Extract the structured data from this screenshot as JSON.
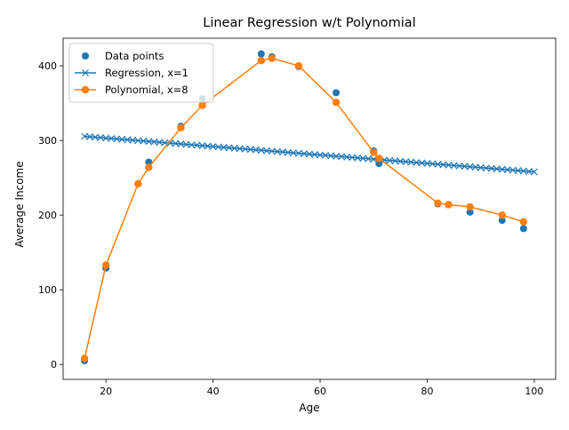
{
  "chart_data": {
    "type": "scatter",
    "title": "Linear Regression w/t Polynomial",
    "xlabel": "Age",
    "ylabel": "Average Income",
    "xlim": [
      12,
      104
    ],
    "ylim": [
      -20,
      437
    ],
    "xticks": [
      20,
      40,
      60,
      80,
      100
    ],
    "yticks": [
      0,
      100,
      200,
      300,
      400
    ],
    "grid": false,
    "legend_position": "upper-left",
    "series": [
      {
        "name": "Data points",
        "kind": "scatter",
        "color": "#1f77b4",
        "marker": "circle",
        "x": [
          16,
          20,
          28,
          34,
          38,
          49,
          51,
          56,
          63,
          70,
          71,
          82,
          84,
          88,
          94,
          98
        ],
        "y": [
          5,
          129,
          271,
          319,
          356,
          416,
          412,
          399,
          364,
          286,
          269,
          215,
          214,
          204,
          193,
          182
        ]
      },
      {
        "name": "Regression, x=1",
        "kind": "line",
        "color": "#1f77b4",
        "marker": "x",
        "x_start": 16,
        "x_end": 100,
        "count": 85,
        "y_start": 305.5,
        "y_end": 258.0
      },
      {
        "name": "Polynomial, x=8",
        "kind": "line",
        "color": "#ff7f0e",
        "marker": "circle",
        "x": [
          16,
          20,
          26,
          28,
          34,
          38,
          49,
          51,
          56,
          63,
          70,
          71,
          82,
          84,
          88,
          94,
          98
        ],
        "y": [
          8,
          133,
          242,
          264,
          317,
          347,
          407,
          410,
          400,
          351,
          284,
          276,
          216,
          214,
          211,
          200,
          191
        ]
      }
    ]
  }
}
